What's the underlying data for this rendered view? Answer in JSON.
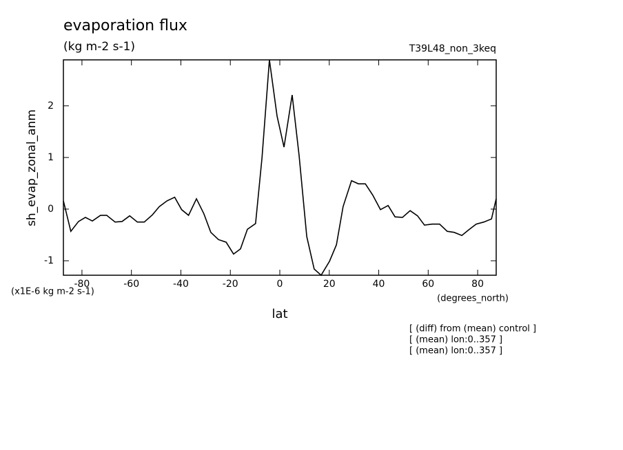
{
  "chart_data": {
    "type": "line",
    "title": "evaporation flux",
    "subtitle": "(kg m-2 s-1)",
    "run_label": "T39L48_non_3keq",
    "y_label": "sh_evap_zonal_anm",
    "y_units": "(x1E-6 kg m-2 s-1)",
    "x_label": "lat",
    "x_units": "(degrees_north)",
    "notes": [
      "[ (diff) from (mean) control ]",
      "[ (mean) lon:0..357 ]",
      "[ (mean) lon:0..357 ]"
    ],
    "x": [
      -87.5,
      -84.5,
      -81.4,
      -78.6,
      -75.8,
      -72.5,
      -70.0,
      -66.6,
      -63.8,
      -60.7,
      -57.6,
      -54.8,
      -51.5,
      -48.7,
      -45.6,
      -42.5,
      -39.7,
      -36.9,
      -33.7,
      -30.7,
      -27.9,
      -24.8,
      -21.7,
      -18.7,
      -15.9,
      -13.1,
      -9.8,
      -7.2,
      -4.2,
      -1.1,
      1.7,
      5.0,
      7.8,
      10.9,
      13.9,
      16.7,
      20.1,
      22.9,
      25.6,
      29.0,
      31.8,
      34.6,
      37.6,
      40.7,
      43.8,
      46.6,
      49.6,
      52.7,
      55.7,
      58.5,
      61.6,
      64.6,
      67.7,
      70.5,
      73.6,
      76.4,
      79.4,
      82.5,
      85.6,
      87.5
    ],
    "series": [
      {
        "name": "sh_evap_zonal_anm",
        "color": "#000000",
        "values": [
          0.16,
          -0.43,
          -0.24,
          -0.16,
          -0.23,
          -0.12,
          -0.12,
          -0.25,
          -0.24,
          -0.13,
          -0.25,
          -0.25,
          -0.11,
          0.05,
          0.16,
          0.23,
          -0.01,
          -0.12,
          0.2,
          -0.09,
          -0.45,
          -0.59,
          -0.64,
          -0.87,
          -0.77,
          -0.39,
          -0.28,
          0.99,
          2.89,
          1.8,
          1.2,
          2.21,
          1.04,
          -0.53,
          -1.16,
          -1.28,
          -1.01,
          -0.69,
          0.05,
          0.55,
          0.49,
          0.49,
          0.27,
          -0.01,
          0.07,
          -0.15,
          -0.16,
          -0.03,
          -0.13,
          -0.31,
          -0.29,
          -0.29,
          -0.43,
          -0.45,
          -0.51,
          -0.4,
          -0.29,
          -0.25,
          -0.19,
          0.2
        ]
      }
    ],
    "xlim": [
      -87.5,
      87.5
    ],
    "xticks": [
      -80,
      -60,
      -40,
      -20,
      0,
      20,
      40,
      60,
      80
    ],
    "ylim": [
      -1.28,
      2.89
    ],
    "yticks": [
      -1,
      0,
      1,
      2
    ]
  }
}
